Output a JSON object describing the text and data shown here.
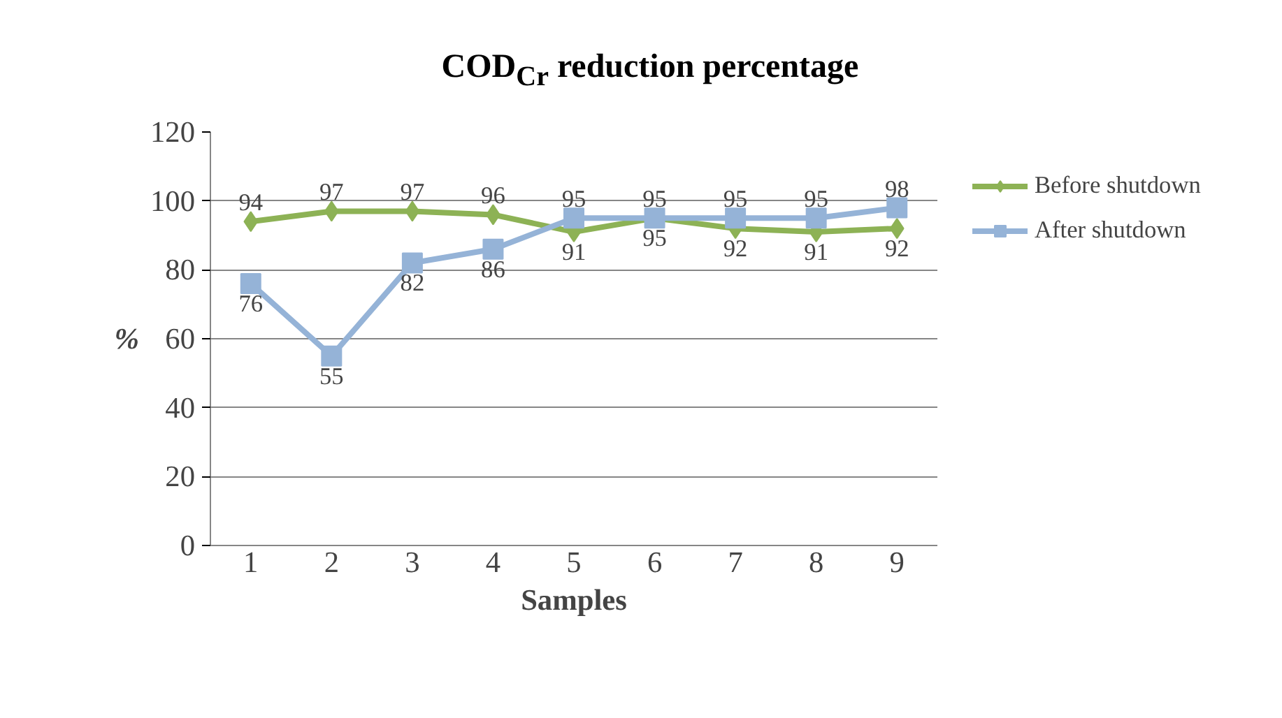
{
  "chart_data": {
    "type": "line",
    "title": "COD$_{Cr}$ reduction percentage",
    "xlabel": "Samples",
    "ylabel": "%",
    "categories": [
      "1",
      "2",
      "3",
      "4",
      "5",
      "6",
      "7",
      "8",
      "9"
    ],
    "series": [
      {
        "name": "Before shutdown",
        "color": "#8db255",
        "marker": "diamond",
        "values": [
          94,
          97,
          97,
          96,
          91,
          95,
          92,
          91,
          92
        ]
      },
      {
        "name": "After shutdown",
        "color": "#95b3d7",
        "marker": "square",
        "values": [
          76,
          55,
          82,
          86,
          95,
          95,
          95,
          95,
          98
        ]
      }
    ],
    "ylim": [
      0,
      120
    ],
    "yticks": [
      0,
      20,
      40,
      60,
      80,
      100,
      120
    ],
    "grid": "y",
    "legend": "right",
    "data_labels": true,
    "line_style": "solid"
  }
}
